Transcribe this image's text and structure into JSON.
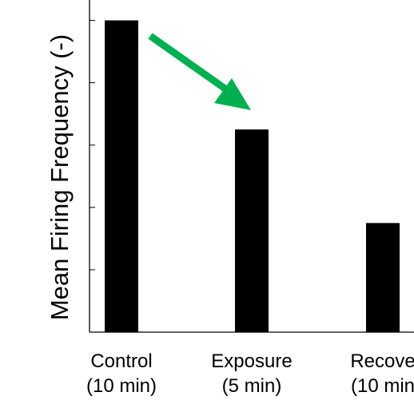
{
  "chart_data": {
    "type": "bar",
    "title": "",
    "ylabel": "Mean Firing Frequency (-)",
    "xlabel": "",
    "categories": [
      [
        "Control",
        "(10 min)"
      ],
      [
        "Exposure",
        "(5 min)"
      ],
      [
        "Recove",
        "(10 min"
      ]
    ],
    "values": [
      1.0,
      0.65,
      0.35
    ],
    "ylim": [
      0,
      1.05
    ],
    "ytick_values": [
      0.2,
      0.4,
      0.6,
      0.8,
      1.0
    ],
    "bar_color": "#000000",
    "arrow_color": "#00b050",
    "grid": false,
    "annotation": "green arrow pointing from Control bar down toward Exposure bar"
  }
}
